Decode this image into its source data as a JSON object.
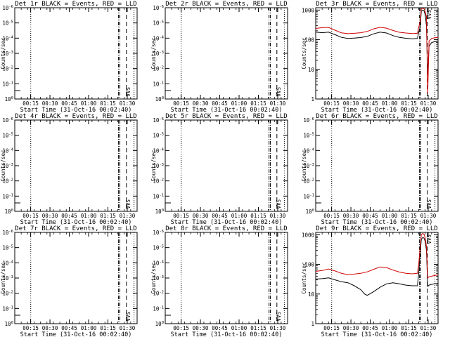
{
  "chart_data": [
    {
      "type": "line",
      "title": "Det 1r BLACK = Events, RED = LLD",
      "xlabel": "Start Time (31-Oct-16 00:02:40)",
      "ylabel": "Counts/sec",
      "yscale": "log",
      "ytick_labels": [
        "10^0",
        "10^-1",
        "10^-2",
        "10^-3",
        "10^-4",
        "10^-5",
        "10^-6"
      ],
      "xtick_labels": [
        "00:15",
        "00:30",
        "00:45",
        "01:00",
        "01:15",
        "01:30"
      ],
      "xlim_min": [
        0,
        95
      ],
      "vlines_min": [
        {
          "x": 12.4,
          "style": "dotted"
        },
        {
          "x": 80.6,
          "style": "dashdot"
        },
        {
          "x": 81.6,
          "style": "dashdot"
        },
        {
          "x": 86.7,
          "style": "dashed"
        },
        {
          "x": 92.6,
          "style": "dotted"
        }
      ],
      "annotations": [
        {
          "text": "SAA",
          "x": 84.5
        }
      ],
      "series": []
    },
    {
      "type": "line",
      "title": "Det 2r BLACK = Events, RED = LLD",
      "xlabel": "Start Time (31-Oct-16 00:02:40)",
      "ylabel": "Counts/sec",
      "yscale": "log",
      "ytick_labels": [
        "10^0",
        "10^-1",
        "10^-2",
        "10^-3",
        "10^-4",
        "10^-5",
        "10^-6"
      ],
      "xtick_labels": [
        "00:15",
        "00:30",
        "00:45",
        "01:00",
        "01:15",
        "01:30"
      ],
      "xlim_min": [
        0,
        95
      ],
      "vlines_min": [
        {
          "x": 12.4,
          "style": "dotted"
        },
        {
          "x": 80.6,
          "style": "dashdot"
        },
        {
          "x": 81.6,
          "style": "dashdot"
        },
        {
          "x": 86.7,
          "style": "dashed"
        },
        {
          "x": 92.6,
          "style": "dotted"
        }
      ],
      "annotations": [
        {
          "text": "SAA",
          "x": 84.5
        }
      ],
      "series": []
    },
    {
      "type": "line",
      "title": "Det 3r BLACK = Events, RED = LLD",
      "xlabel": "Start Time (31-Oct-16 00:02:40)",
      "ylabel": "Counts/sec",
      "yscale": "log",
      "ylim": [
        1,
        1200
      ],
      "ytick_labels": [
        "1",
        "10",
        "100",
        "1000"
      ],
      "ytick_values": [
        1,
        10,
        100,
        1000
      ],
      "xtick_labels": [
        "00:15",
        "00:30",
        "00:45",
        "01:00",
        "01:15",
        "01:30"
      ],
      "xlim_min": [
        0,
        95
      ],
      "vlines_min": [
        {
          "x": 12.4,
          "style": "dotted"
        },
        {
          "x": 80.6,
          "style": "dashdot"
        },
        {
          "x": 81.6,
          "style": "dashdot"
        },
        {
          "x": 86.7,
          "style": "dashed"
        },
        {
          "x": 92.6,
          "style": "dotted"
        }
      ],
      "annotations": [
        {
          "text": "SAA",
          "x": 84.5
        }
      ],
      "series": [
        {
          "color": "#000000",
          "x": [
            0,
            5,
            10,
            15,
            20,
            25,
            30,
            35,
            40,
            45,
            50,
            55,
            60,
            65,
            70,
            75,
            79,
            80,
            81,
            82,
            83,
            84,
            85,
            86,
            87,
            88,
            90,
            92,
            95
          ],
          "y": [
            180,
            172,
            180,
            148,
            120,
            110,
            114,
            118,
            130,
            158,
            180,
            168,
            138,
            120,
            112,
            108,
            110,
            180,
            260,
            900,
            1000,
            960,
            700,
            300,
            5,
            60,
            80,
            85,
            90
          ]
        },
        {
          "color": "#d00000",
          "x": [
            0,
            5,
            10,
            15,
            20,
            25,
            30,
            35,
            40,
            45,
            50,
            55,
            60,
            65,
            70,
            75,
            79,
            80,
            81,
            82,
            83,
            84,
            85,
            86,
            87,
            88,
            90,
            92,
            95
          ],
          "y": [
            240,
            255,
            260,
            210,
            170,
            160,
            165,
            172,
            190,
            232,
            262,
            246,
            205,
            178,
            168,
            162,
            165,
            260,
            390,
            1100,
            1150,
            1120,
            900,
            600,
            1.5,
            90,
            110,
            115,
            120
          ]
        }
      ]
    },
    {
      "type": "line",
      "title": "Det 4r BLACK = Events, RED = LLD",
      "xlabel": "Start Time (31-Oct-16 00:02:40)",
      "ylabel": "Counts/sec",
      "yscale": "log",
      "ytick_labels": [
        "10^0",
        "10^-1",
        "10^-2",
        "10^-3",
        "10^-4",
        "10^-5",
        "10^-6"
      ],
      "xtick_labels": [
        "00:15",
        "00:30",
        "00:45",
        "01:00",
        "01:15",
        "01:30"
      ],
      "xlim_min": [
        0,
        95
      ],
      "vlines_min": [
        {
          "x": 12.4,
          "style": "dotted"
        },
        {
          "x": 80.6,
          "style": "dashdot"
        },
        {
          "x": 81.6,
          "style": "dashdot"
        },
        {
          "x": 86.7,
          "style": "dashed"
        },
        {
          "x": 92.6,
          "style": "dotted"
        }
      ],
      "annotations": [
        {
          "text": "SAA",
          "x": 84.5
        }
      ],
      "series": []
    },
    {
      "type": "line",
      "title": "Det 5r BLACK = Events, RED = LLD",
      "xlabel": "Start Time (31-Oct-16 00:02:40)",
      "ylabel": "Counts/sec",
      "yscale": "log",
      "ytick_labels": [
        "10^0",
        "10^-1",
        "10^-2",
        "10^-3",
        "10^-4",
        "10^-5",
        "10^-6"
      ],
      "xtick_labels": [
        "00:15",
        "00:30",
        "00:45",
        "01:00",
        "01:15",
        "01:30"
      ],
      "xlim_min": [
        0,
        95
      ],
      "vlines_min": [
        {
          "x": 12.4,
          "style": "dotted"
        },
        {
          "x": 80.6,
          "style": "dashdot"
        },
        {
          "x": 81.6,
          "style": "dashdot"
        },
        {
          "x": 86.7,
          "style": "dashed"
        },
        {
          "x": 92.6,
          "style": "dotted"
        }
      ],
      "annotations": [
        {
          "text": "SAA",
          "x": 84.5
        }
      ],
      "series": []
    },
    {
      "type": "line",
      "title": "Det 6r BLACK = Events, RED = LLD",
      "xlabel": "Start Time (31-Oct-16 00:02:40)",
      "ylabel": "Counts/sec",
      "yscale": "log",
      "ytick_labels": [
        "10^0",
        "10^-1",
        "10^-2",
        "10^-3",
        "10^-4",
        "10^-5",
        "10^-6"
      ],
      "xtick_labels": [
        "00:15",
        "00:30",
        "00:45",
        "01:00",
        "01:15",
        "01:30"
      ],
      "xlim_min": [
        0,
        95
      ],
      "vlines_min": [
        {
          "x": 12.4,
          "style": "dotted"
        },
        {
          "x": 80.6,
          "style": "dashdot"
        },
        {
          "x": 81.6,
          "style": "dashdot"
        },
        {
          "x": 86.7,
          "style": "dashed"
        },
        {
          "x": 92.6,
          "style": "dotted"
        }
      ],
      "annotations": [
        {
          "text": "SAA",
          "x": 84.5
        }
      ],
      "series": []
    },
    {
      "type": "line",
      "title": "Det 7r BLACK = Events, RED = LLD",
      "xlabel": "Start Time (31-Oct-16 00:02:40)",
      "ylabel": "Counts/sec",
      "yscale": "log",
      "ytick_labels": [
        "10^0",
        "10^-1",
        "10^-2",
        "10^-3",
        "10^-4",
        "10^-5",
        "10^-6"
      ],
      "xtick_labels": [
        "00:15",
        "00:30",
        "00:45",
        "01:00",
        "01:15",
        "01:30"
      ],
      "xlim_min": [
        0,
        95
      ],
      "vlines_min": [
        {
          "x": 12.4,
          "style": "dotted"
        },
        {
          "x": 80.6,
          "style": "dashdot"
        },
        {
          "x": 81.6,
          "style": "dashdot"
        },
        {
          "x": 86.7,
          "style": "dashed"
        },
        {
          "x": 92.6,
          "style": "dotted"
        }
      ],
      "annotations": [
        {
          "text": "SAA",
          "x": 84.5
        }
      ],
      "series": []
    },
    {
      "type": "line",
      "title": "Det 8r BLACK = Events, RED = LLD",
      "xlabel": "Start Time (31-Oct-16 00:02:40)",
      "ylabel": "Counts/sec",
      "yscale": "log",
      "ytick_labels": [
        "10^0",
        "10^-1",
        "10^-2",
        "10^-3",
        "10^-4",
        "10^-5",
        "10^-6"
      ],
      "xtick_labels": [
        "00:15",
        "00:30",
        "00:45",
        "01:00",
        "01:15",
        "01:30"
      ],
      "xlim_min": [
        0,
        95
      ],
      "vlines_min": [
        {
          "x": 12.4,
          "style": "dotted"
        },
        {
          "x": 80.6,
          "style": "dashdot"
        },
        {
          "x": 81.6,
          "style": "dashdot"
        },
        {
          "x": 86.7,
          "style": "dashed"
        },
        {
          "x": 92.6,
          "style": "dotted"
        }
      ],
      "annotations": [
        {
          "text": "SAA",
          "x": 84.5
        }
      ],
      "series": []
    },
    {
      "type": "line",
      "title": "Det 9r BLACK = Events, RED = LLD",
      "xlabel": "Start Time (31-Oct-16 00:02:40)",
      "ylabel": "Counts/sec",
      "yscale": "log",
      "ylim": [
        1,
        1200
      ],
      "ytick_labels": [
        "1",
        "10",
        "100",
        "1000"
      ],
      "ytick_values": [
        1,
        10,
        100,
        1000
      ],
      "xtick_labels": [
        "00:15",
        "00:30",
        "00:45",
        "01:00",
        "01:15",
        "01:30"
      ],
      "xlim_min": [
        0,
        95
      ],
      "vlines_min": [
        {
          "x": 12.4,
          "style": "dotted"
        },
        {
          "x": 80.6,
          "style": "dashdot"
        },
        {
          "x": 81.6,
          "style": "dashdot"
        },
        {
          "x": 86.7,
          "style": "dashed"
        },
        {
          "x": 92.6,
          "style": "dotted"
        }
      ],
      "annotations": [
        {
          "text": "SAA",
          "x": 84.5
        }
      ],
      "series": [
        {
          "color": "#000000",
          "x": [
            0,
            5,
            10,
            15,
            20,
            25,
            30,
            35,
            38,
            40,
            45,
            50,
            55,
            60,
            65,
            70,
            75,
            79,
            80,
            81,
            82,
            83,
            84,
            85,
            86,
            87,
            88,
            90,
            92,
            95
          ],
          "y": [
            32,
            33,
            35,
            30,
            26,
            24,
            19,
            14,
            10,
            9,
            12,
            17,
            22,
            24,
            22,
            20,
            19,
            19,
            50,
            200,
            700,
            800,
            780,
            600,
            300,
            18,
            20,
            21,
            22,
            23
          ]
        },
        {
          "color": "#d00000",
          "x": [
            0,
            5,
            10,
            15,
            20,
            25,
            30,
            35,
            40,
            45,
            50,
            55,
            60,
            65,
            70,
            75,
            79,
            80,
            81,
            82,
            83,
            84,
            85,
            86,
            87,
            88,
            90,
            92,
            95
          ],
          "y": [
            58,
            62,
            70,
            60,
            50,
            45,
            47,
            50,
            56,
            68,
            82,
            78,
            64,
            55,
            50,
            48,
            50,
            100,
            350,
            1000,
            1100,
            1050,
            800,
            400,
            35,
            38,
            40,
            42,
            44
          ]
        }
      ]
    }
  ]
}
